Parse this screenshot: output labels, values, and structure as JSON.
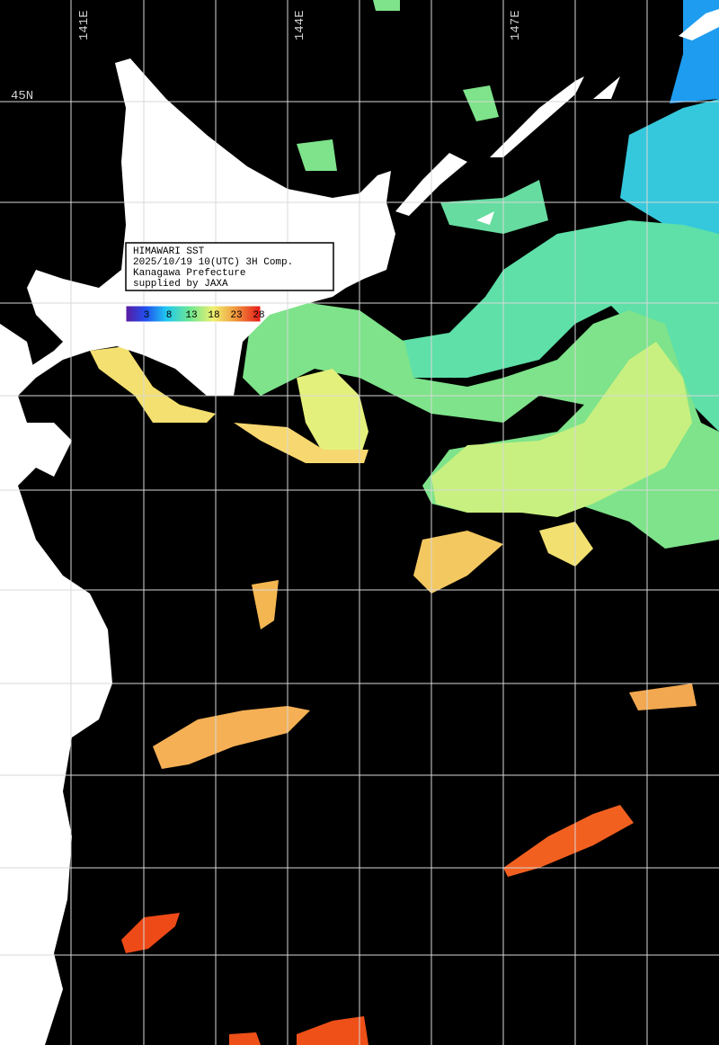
{
  "map": {
    "info_box": {
      "lines": [
        "HIMAWARI SST",
        "2025/10/19 10(UTC) 3H Comp.",
        "Kanagawa Prefecture",
        "supplied by JAXA"
      ]
    },
    "colorbar": {
      "labels": [
        3,
        8,
        13,
        18,
        23,
        28
      ]
    },
    "longitude_labels": [
      "141E",
      "144E",
      "147E"
    ],
    "latitude_labels": [
      "45N"
    ]
  }
}
